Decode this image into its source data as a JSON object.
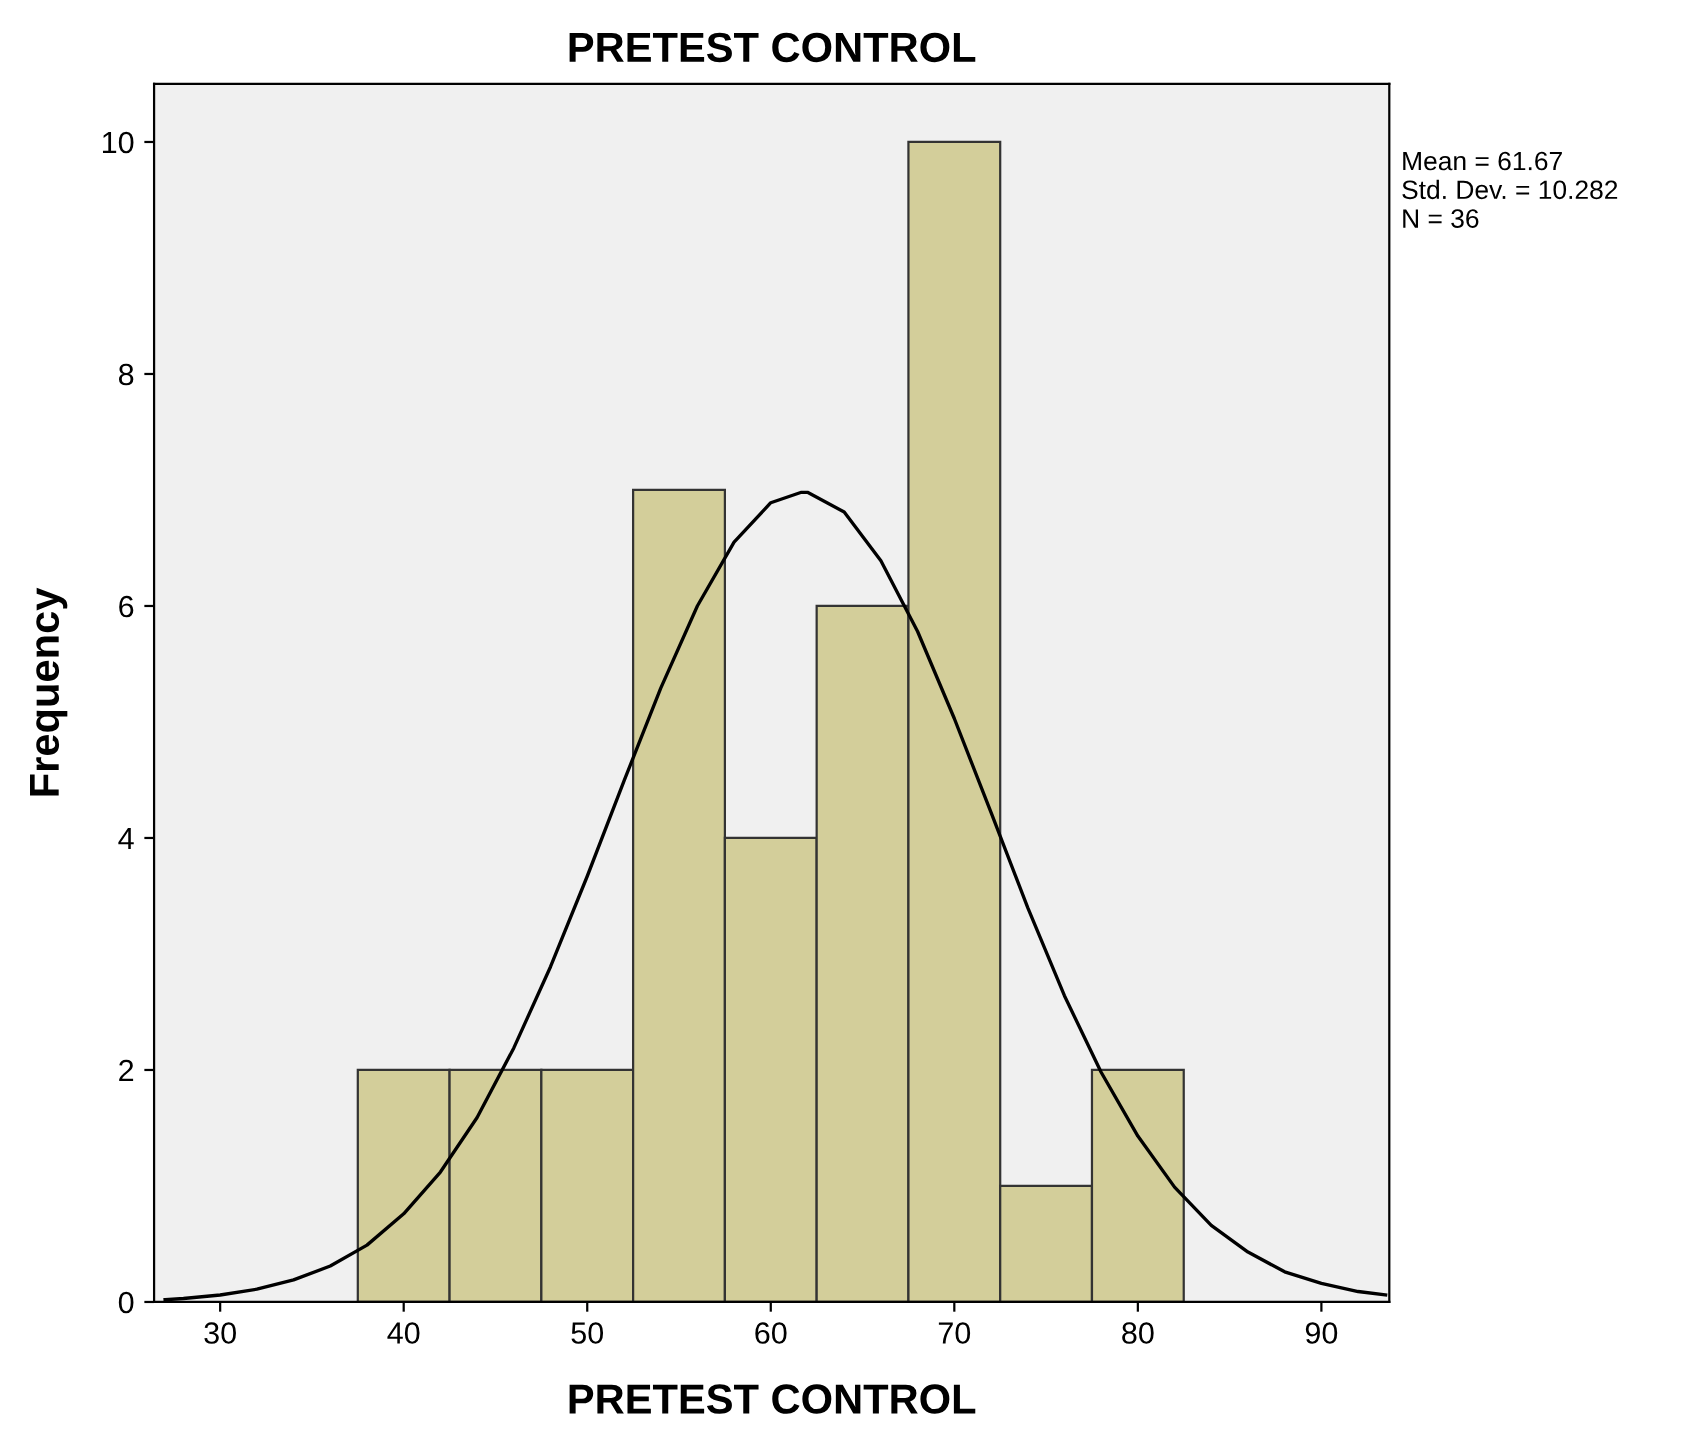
{
  "chart_data": {
    "type": "histogram",
    "title": "PRETEST CONTROL",
    "xlabel": "PRETEST CONTROL",
    "ylabel": "Frequency",
    "series": [
      {
        "bins": [
          37.5,
          42.5,
          47.5,
          52.5,
          57.5,
          62.5,
          67.5,
          72.5,
          77.5,
          82.5
        ],
        "values": [
          2,
          2,
          2,
          7,
          4,
          6,
          10,
          1,
          2
        ],
        "color": "#d3ce9a"
      },
      {
        "type": "line",
        "color": "#000000",
        "x": [
          27,
          28,
          30,
          32,
          34,
          36,
          38,
          40,
          42,
          44,
          46,
          48,
          50,
          52,
          54,
          56,
          58,
          60,
          61.67,
          62,
          64,
          66,
          68,
          70,
          72,
          74,
          76,
          78,
          80,
          82,
          84,
          86,
          88,
          90,
          92,
          93.5
        ],
        "values": [
          0.02,
          0.03,
          0.06,
          0.11,
          0.19,
          0.31,
          0.49,
          0.76,
          1.12,
          1.59,
          2.19,
          2.89,
          3.67,
          4.49,
          5.29,
          6.0,
          6.55,
          6.89,
          6.98,
          6.98,
          6.81,
          6.39,
          5.78,
          5.03,
          4.22,
          3.4,
          2.64,
          1.98,
          1.43,
          0.99,
          0.66,
          0.43,
          0.26,
          0.16,
          0.09,
          0.06
        ]
      }
    ],
    "xlim": [
      26.4,
      93.7
    ],
    "xticks": [
      30,
      40,
      50,
      60,
      70,
      80,
      90
    ],
    "ylim": [
      0,
      10.5
    ],
    "yticks": [
      0,
      2,
      4,
      6,
      8,
      10
    ],
    "grid": false,
    "legend": false,
    "annotations": [
      "Mean = 61.67",
      "Std. Dev. = 10.282",
      "N = 36"
    ]
  }
}
